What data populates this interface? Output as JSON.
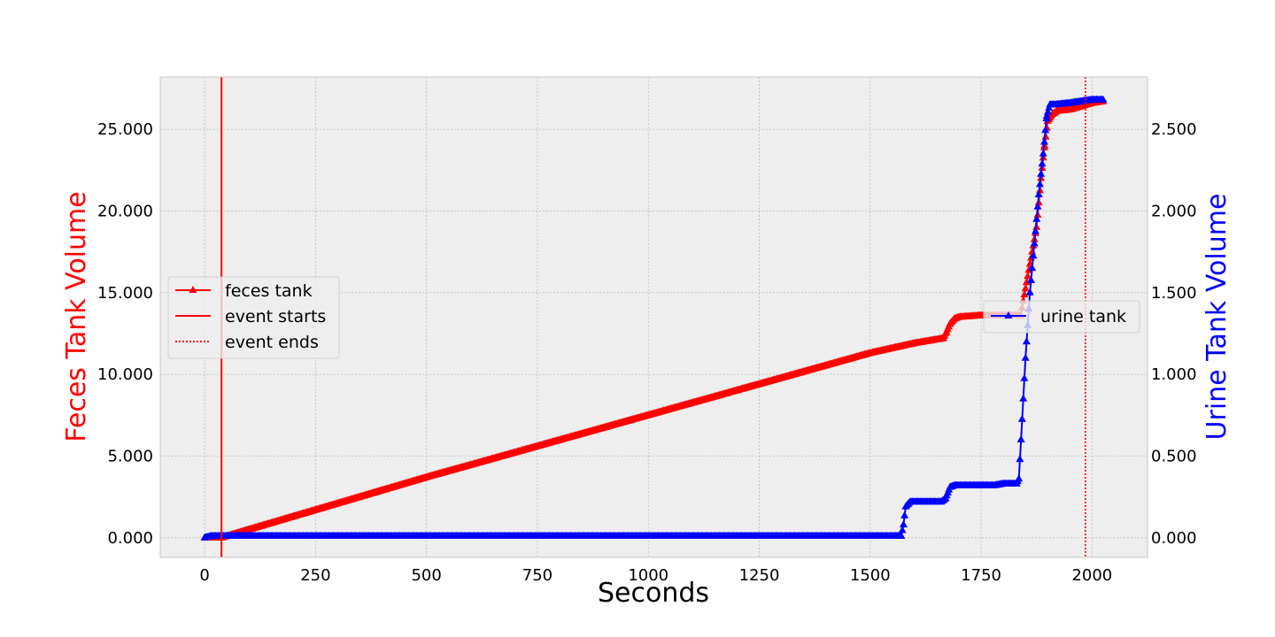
{
  "chart_data": {
    "type": "line",
    "title": "",
    "xlabel": "Seconds",
    "ylabel_left": "Feces Tank Volume",
    "ylabel_right": "Urine Tank Volume",
    "xlim": [
      -100,
      2125
    ],
    "ylim_left": [
      -1.2,
      28.2
    ],
    "ylim_right": [
      -0.12,
      2.82
    ],
    "xticks": [
      0,
      250,
      500,
      750,
      1000,
      1250,
      1500,
      1750,
      2000
    ],
    "xtick_labels": [
      "0",
      "250",
      "500",
      "750",
      "1000",
      "1250",
      "1500",
      "1750",
      "2000"
    ],
    "yticks_left": [
      0,
      5,
      10,
      15,
      20,
      25
    ],
    "ytick_labels_left": [
      "0.000",
      "5.000",
      "10.000",
      "15.000",
      "20.000",
      "25.000"
    ],
    "yticks_right": [
      0,
      0.5,
      1.0,
      1.5,
      2.0,
      2.5
    ],
    "ytick_labels_right": [
      "0.000",
      "0.500",
      "1.000",
      "1.500",
      "2.000",
      "2.500"
    ],
    "grid": true,
    "colors": {
      "feces": "#ff0000",
      "urine": "#0000ff",
      "event": "#ff0000",
      "plot_bg": "#eeeeee",
      "grid": "#bbbbbb"
    },
    "events": {
      "start_x": 38,
      "end_x": 1985
    },
    "series": [
      {
        "name": "feces tank",
        "axis": "left",
        "x": [
          0,
          38,
          100,
          250,
          500,
          750,
          1000,
          1250,
          1500,
          1600,
          1665,
          1672,
          1680,
          1690,
          1700,
          1750,
          1800,
          1840,
          1845,
          1855,
          1865,
          1875,
          1885,
          1893,
          1900,
          1910,
          1920,
          1950,
          1975,
          2000,
          2025
        ],
        "y": [
          0,
          0,
          0.5,
          1.7,
          3.7,
          5.6,
          7.5,
          9.4,
          11.3,
          11.9,
          12.2,
          12.6,
          13.1,
          13.4,
          13.5,
          13.6,
          13.6,
          13.6,
          14.5,
          16.0,
          17.5,
          19.0,
          22.0,
          24.0,
          25.5,
          25.9,
          26.1,
          26.2,
          26.4,
          26.6,
          26.7
        ]
      },
      {
        "name": "urine tank",
        "axis": "right",
        "x": [
          0,
          15,
          38,
          100,
          500,
          1000,
          1500,
          1570,
          1575,
          1580,
          1590,
          1600,
          1640,
          1660,
          1670,
          1680,
          1690,
          1700,
          1750,
          1780,
          1800,
          1830,
          1835,
          1840,
          1850,
          1860,
          1870,
          1880,
          1890,
          1898,
          1905,
          1915,
          1950,
          2000,
          2025
        ],
        "y": [
          0,
          0.01,
          0.01,
          0.01,
          0.01,
          0.01,
          0.01,
          0.01,
          0.08,
          0.19,
          0.22,
          0.22,
          0.22,
          0.22,
          0.24,
          0.31,
          0.32,
          0.32,
          0.32,
          0.32,
          0.33,
          0.33,
          0.36,
          0.6,
          1.1,
          1.5,
          1.8,
          2.1,
          2.35,
          2.58,
          2.65,
          2.65,
          2.66,
          2.68,
          2.68
        ]
      }
    ],
    "legend_left": {
      "entries": [
        "feces tank",
        "event starts",
        "event ends"
      ],
      "placement": "center-left"
    },
    "legend_right": {
      "entries": [
        "urine tank"
      ],
      "placement": "center-right"
    }
  }
}
